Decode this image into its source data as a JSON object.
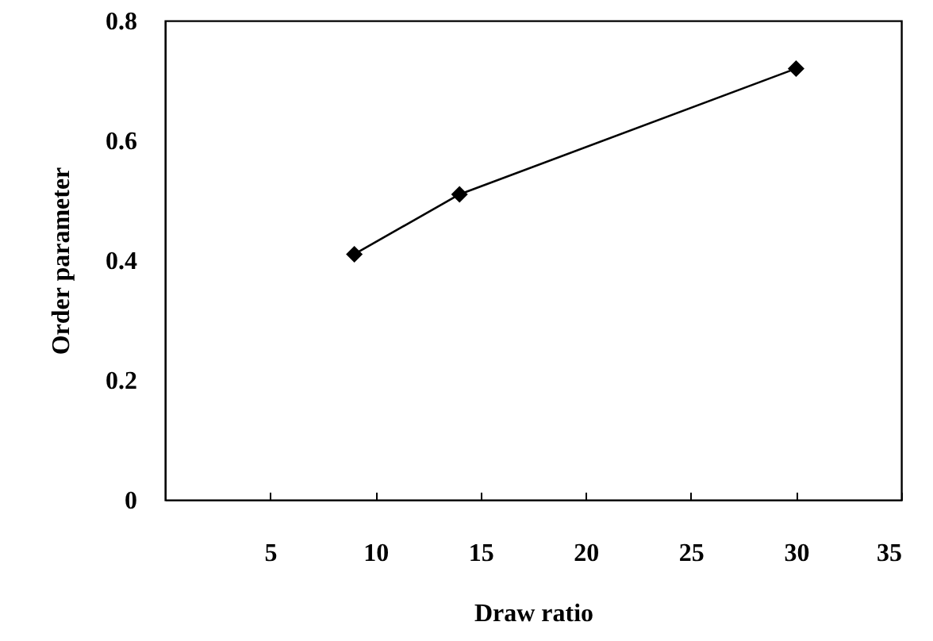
{
  "chart_data": {
    "type": "line",
    "xlabel": "Draw ratio",
    "ylabel": "Order parameter",
    "x": [
      9,
      14,
      30
    ],
    "series": [
      {
        "color": "#000000",
        "values": [
          0.41,
          0.51,
          0.72
        ]
      }
    ],
    "xlim": [
      0,
      35
    ],
    "xticks": [
      5,
      10,
      15,
      20,
      25,
      30,
      35
    ],
    "ylim": [
      0,
      0.8
    ],
    "yticks": [
      0,
      0.2,
      0.4,
      0.6,
      0.8
    ],
    "grid": false,
    "marker": "diamond",
    "line_style": "solid"
  }
}
